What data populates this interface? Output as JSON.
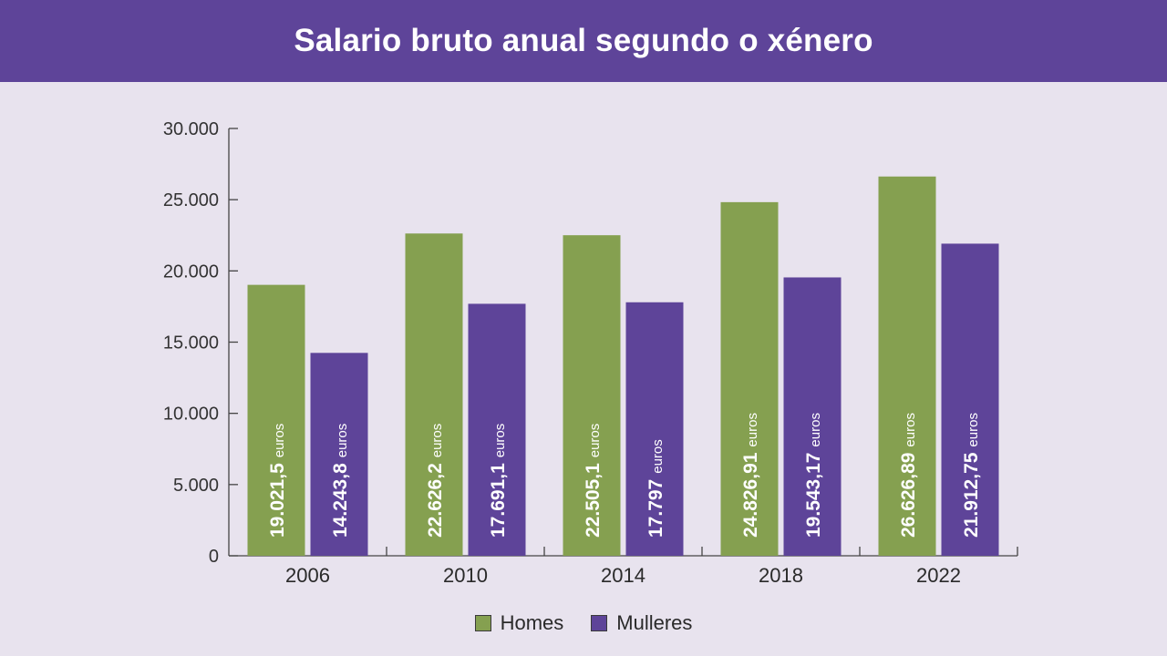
{
  "header": {
    "title": "Salario bruto anual segundo o xénero"
  },
  "chart_data": {
    "type": "bar",
    "title": "Salario bruto anual segundo o xénero",
    "categories": [
      "2006",
      "2010",
      "2014",
      "2018",
      "2022"
    ],
    "ylim": [
      0,
      30000
    ],
    "yticks": [
      0,
      5000,
      10000,
      15000,
      20000,
      25000,
      30000
    ],
    "ytick_labels": [
      "0",
      "5.000",
      "10.000",
      "15.000",
      "20.000",
      "25.000",
      "30.000"
    ],
    "grid": false,
    "legend_position": "bottom-center",
    "unit_label": "euros",
    "series": [
      {
        "name": "Homes",
        "color": "#85a050",
        "values": [
          19021.5,
          22626.2,
          22505.1,
          24826.91,
          26626.89
        ],
        "labels": [
          "19.021,5",
          "22.626,2",
          "22.505,1",
          "24.826,91",
          "26.626,89"
        ]
      },
      {
        "name": "Mulleres",
        "color": "#5e4499",
        "values": [
          14243.8,
          17691.1,
          17797,
          19543.17,
          21912.75
        ],
        "labels": [
          "14.243,8",
          "17.691,1",
          "17.797",
          "19.543,17",
          "21.912,75"
        ]
      }
    ]
  }
}
